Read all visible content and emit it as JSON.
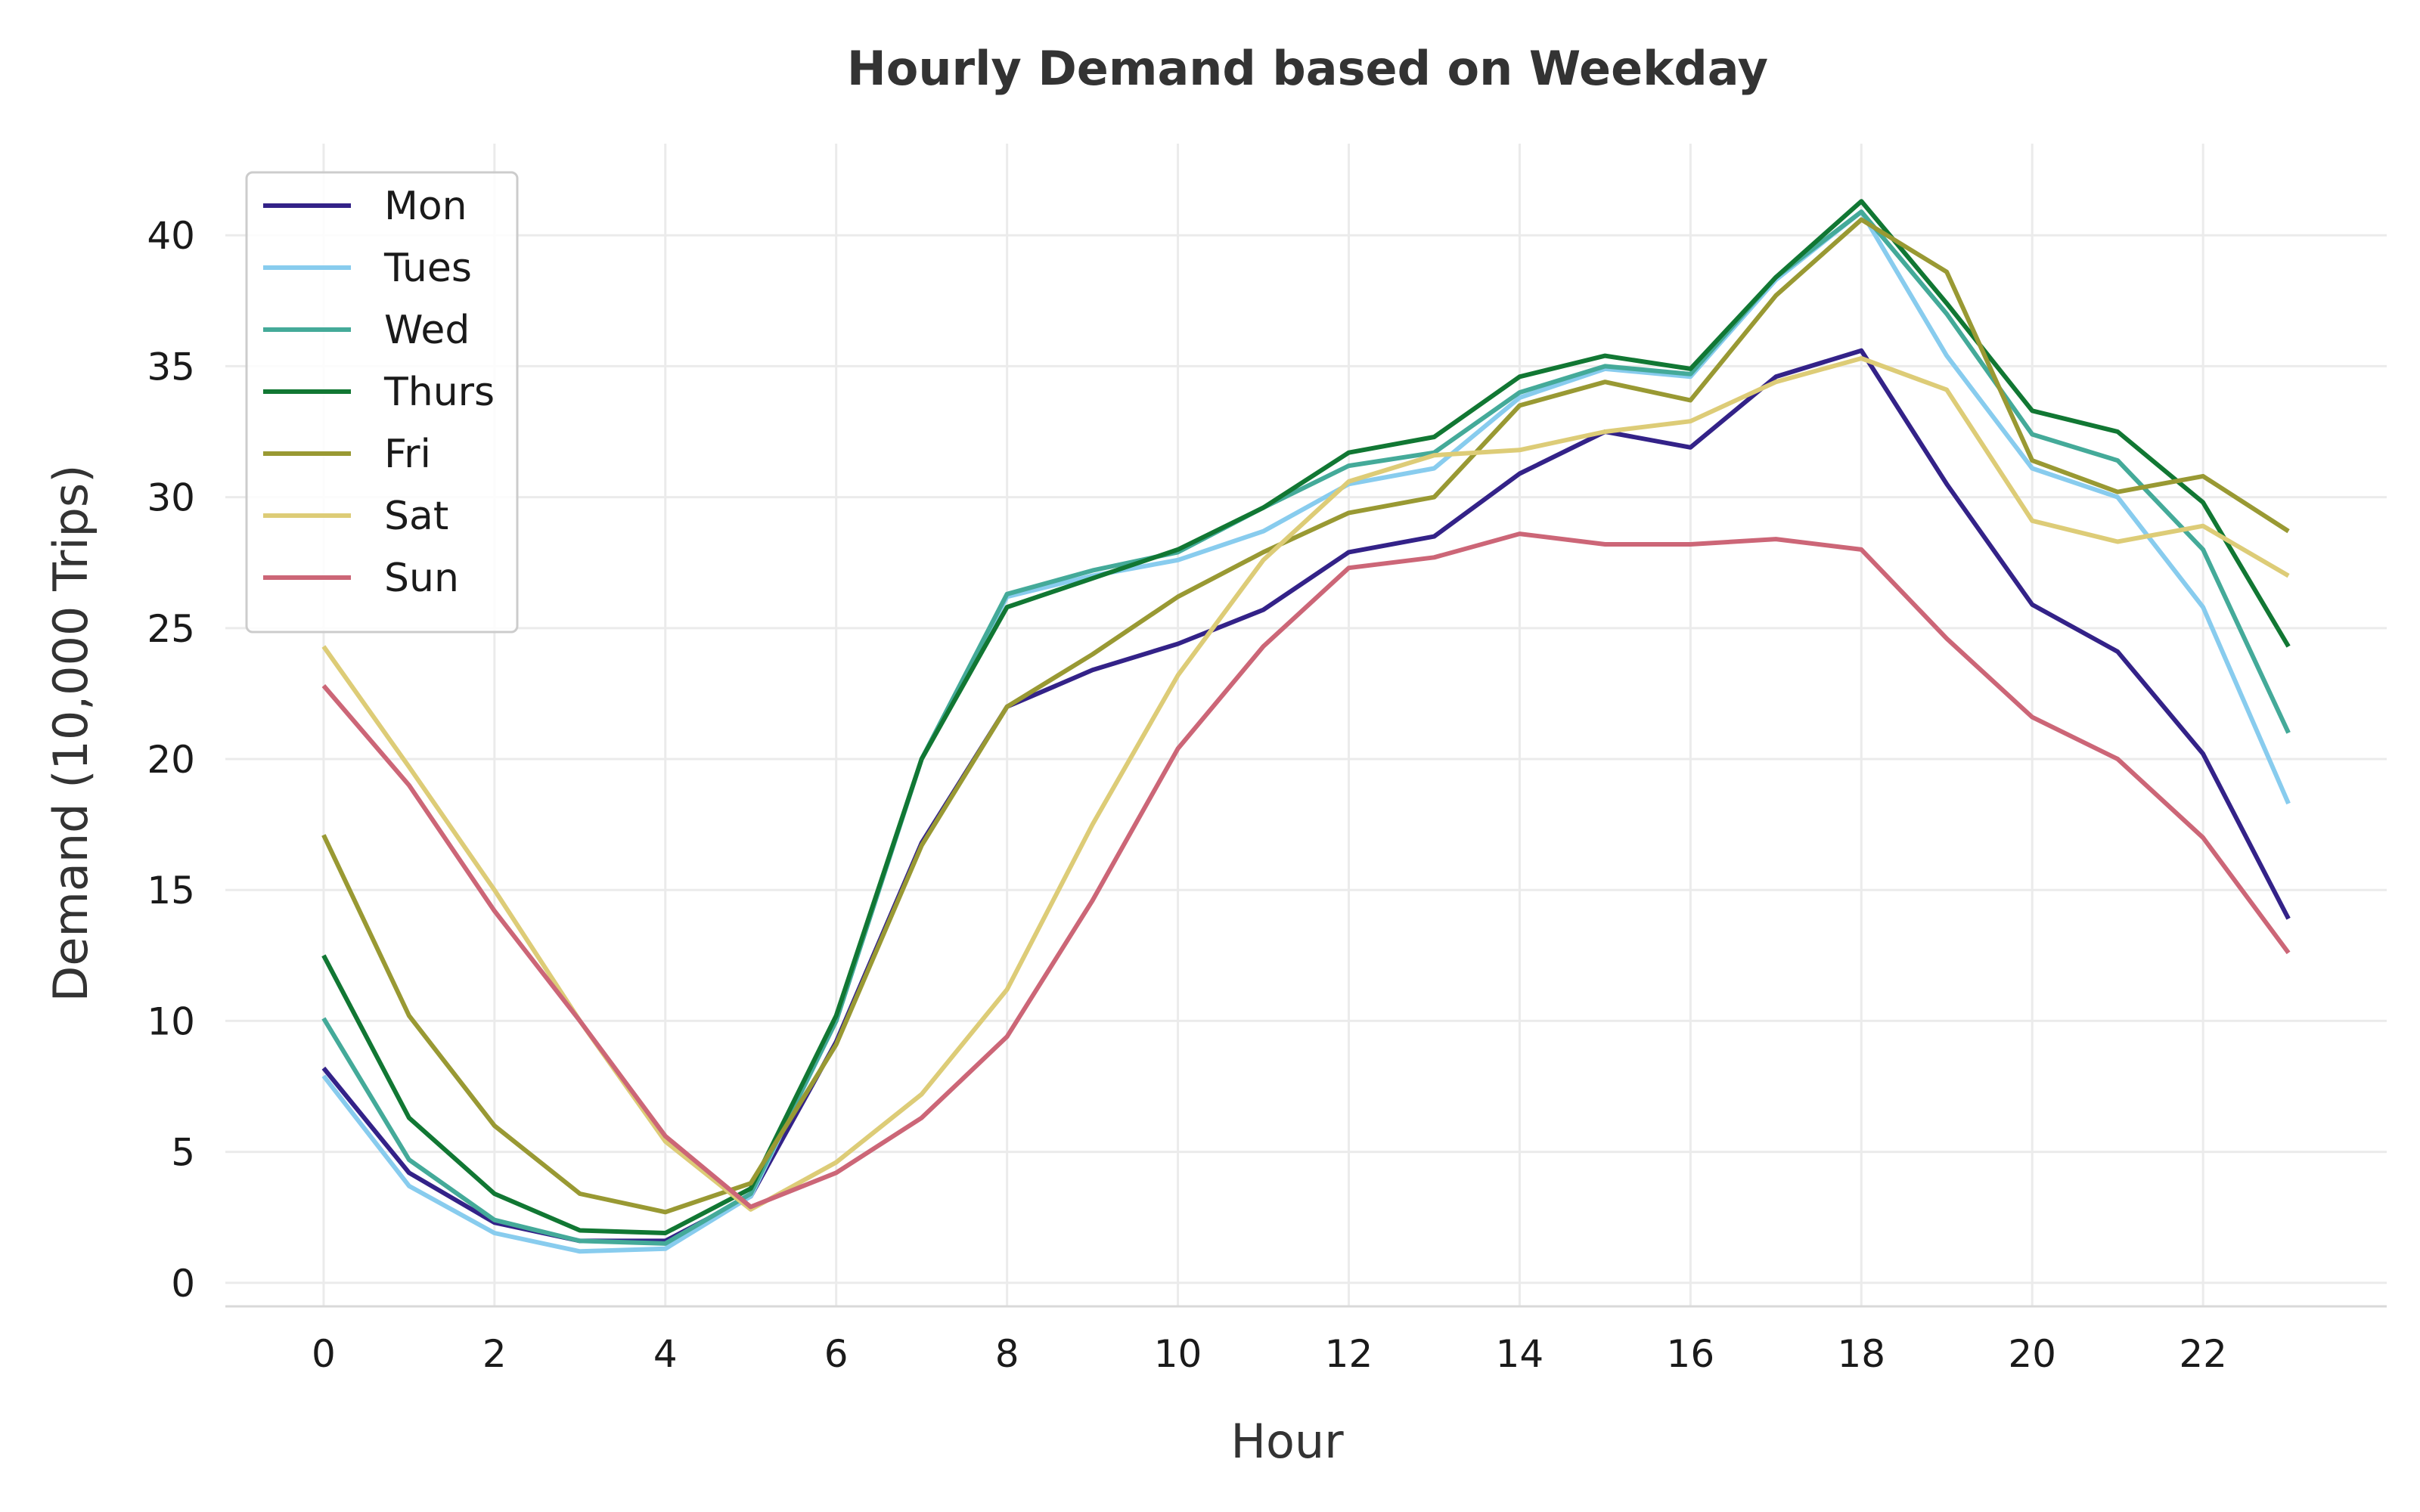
{
  "chart_data": {
    "type": "line",
    "title": "Hourly Demand based on Weekday",
    "xlabel": "Hour",
    "ylabel": "Demand (10,000 Trips)",
    "xlim": [
      -1.15,
      24.15
    ],
    "ylim": [
      -0.9,
      43.5
    ],
    "x_ticks": [
      0,
      2,
      4,
      6,
      8,
      10,
      12,
      14,
      16,
      18,
      20,
      22
    ],
    "y_ticks": [
      0,
      5,
      10,
      15,
      20,
      25,
      30,
      35,
      40
    ],
    "grid": true,
    "legend_position": "top-left",
    "x": [
      0,
      1,
      2,
      3,
      4,
      5,
      6,
      7,
      8,
      9,
      10,
      11,
      12,
      13,
      14,
      15,
      16,
      17,
      18,
      19,
      20,
      21,
      22,
      23
    ],
    "series": [
      {
        "name": "Mon",
        "color": "#332288",
        "values": [
          8.2,
          4.2,
          2.3,
          1.6,
          1.6,
          3.3,
          9.2,
          16.8,
          22.0,
          23.4,
          24.4,
          25.7,
          27.9,
          28.5,
          30.9,
          32.5,
          31.9,
          34.6,
          35.6,
          30.5,
          25.9,
          24.1,
          20.2,
          13.9
        ]
      },
      {
        "name": "Tues",
        "color": "#88CCEE",
        "values": [
          7.9,
          3.7,
          1.9,
          1.2,
          1.3,
          3.3,
          10.0,
          20.0,
          26.2,
          27.0,
          27.6,
          28.7,
          30.5,
          31.1,
          33.8,
          34.9,
          34.6,
          38.3,
          40.9,
          35.4,
          31.1,
          30.0,
          25.8,
          18.3
        ]
      },
      {
        "name": "Wed",
        "color": "#44AA99",
        "values": [
          10.1,
          4.7,
          2.4,
          1.6,
          1.5,
          3.4,
          10.0,
          20.0,
          26.3,
          27.2,
          27.9,
          29.6,
          31.2,
          31.7,
          34.0,
          35.0,
          34.7,
          38.4,
          40.9,
          37.0,
          32.4,
          31.4,
          28.0,
          21.0
        ]
      },
      {
        "name": "Thurs",
        "color": "#117733",
        "values": [
          12.5,
          6.3,
          3.4,
          2.0,
          1.9,
          3.6,
          10.2,
          20.0,
          25.8,
          26.9,
          28.0,
          29.6,
          31.7,
          32.3,
          34.6,
          35.4,
          34.9,
          38.4,
          41.3,
          37.4,
          33.3,
          32.5,
          29.8,
          24.3
        ]
      },
      {
        "name": "Fri",
        "color": "#999933",
        "values": [
          17.1,
          10.2,
          6.0,
          3.4,
          2.7,
          3.8,
          9.1,
          16.7,
          22.0,
          24.0,
          26.2,
          27.9,
          29.4,
          30.0,
          33.5,
          34.4,
          33.7,
          37.7,
          40.6,
          38.6,
          31.4,
          30.2,
          30.8,
          28.7
        ]
      },
      {
        "name": "Sat",
        "color": "#DDCC77",
        "values": [
          24.3,
          19.7,
          15.0,
          10.0,
          5.4,
          2.8,
          4.6,
          7.2,
          11.2,
          17.5,
          23.2,
          27.6,
          30.6,
          31.6,
          31.8,
          32.5,
          32.9,
          34.4,
          35.3,
          34.1,
          29.1,
          28.3,
          28.9,
          27.0
        ]
      },
      {
        "name": "Sun",
        "color": "#CC6677",
        "values": [
          22.8,
          19.0,
          14.2,
          10.0,
          5.6,
          2.9,
          4.2,
          6.3,
          9.4,
          14.6,
          20.4,
          24.3,
          27.3,
          27.7,
          28.6,
          28.2,
          28.2,
          28.4,
          28.0,
          24.6,
          21.6,
          20.0,
          17.0,
          12.6
        ]
      }
    ]
  }
}
